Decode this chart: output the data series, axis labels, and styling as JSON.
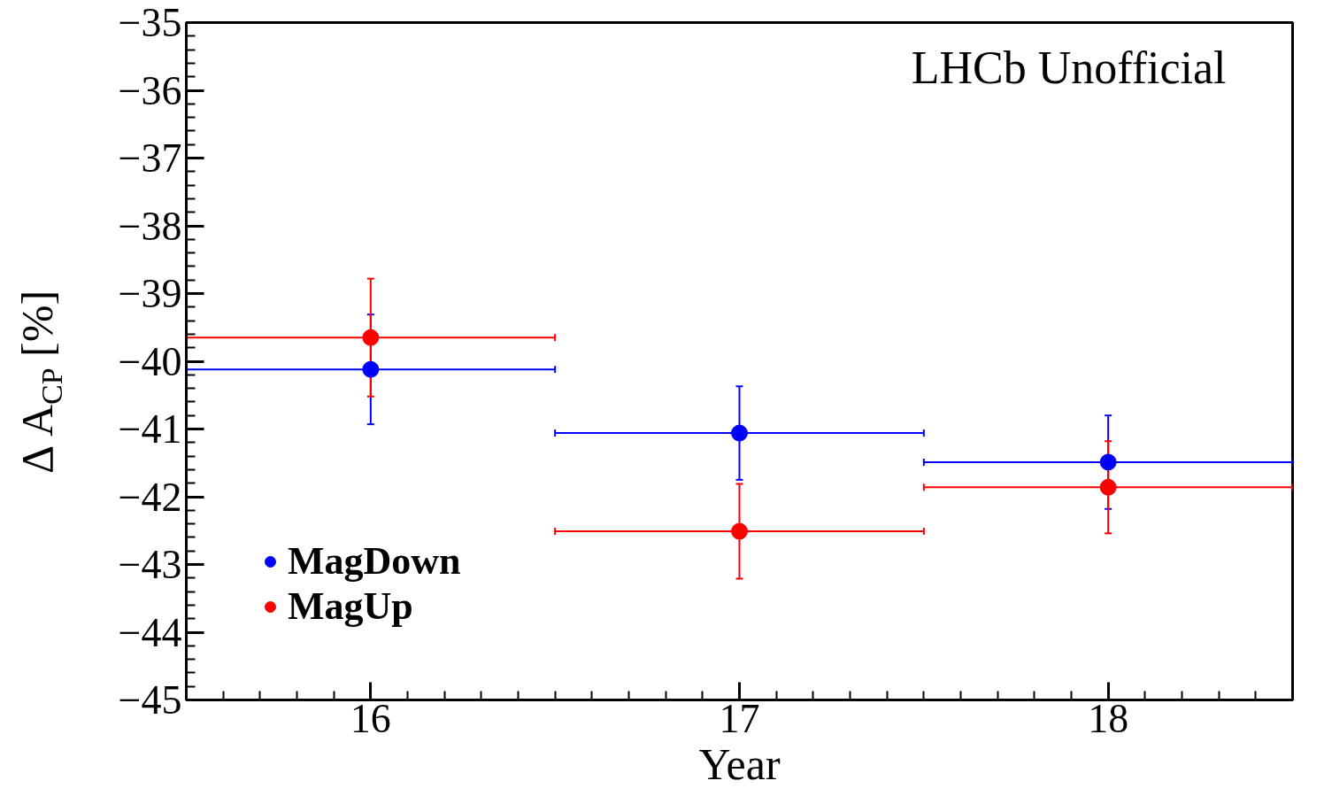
{
  "chart_data": {
    "type": "scatter",
    "xlabel": "Year",
    "ylabel": "Δ A$_{CP}$ [%]",
    "x": [
      16,
      17,
      18
    ],
    "series": [
      {
        "name": "MagDown",
        "color": "#0000ff",
        "values": [
          -40.12,
          -41.06,
          -41.49
        ],
        "errors": [
          0.81,
          0.69,
          0.69
        ],
        "xerrors": [
          0.5,
          0.5,
          0.5
        ]
      },
      {
        "name": "MagUp",
        "color": "#ff0000",
        "values": [
          -39.65,
          -42.51,
          -41.86
        ],
        "errors": [
          0.87,
          0.7,
          0.68
        ],
        "xerrors": [
          0.5,
          0.5,
          0.5
        ]
      }
    ],
    "xlim": [
      15.5,
      18.5
    ],
    "ylim": [
      -45,
      -35
    ],
    "xticks": [
      16,
      17,
      18
    ],
    "yticks": [
      -45,
      -44,
      -43,
      -42,
      -41,
      -40,
      -39,
      -38,
      -37,
      -36,
      -35
    ],
    "annotations": [
      "LHCb Unofficial"
    ],
    "grid": false,
    "legend": "bottom left",
    "marker": "circle"
  }
}
